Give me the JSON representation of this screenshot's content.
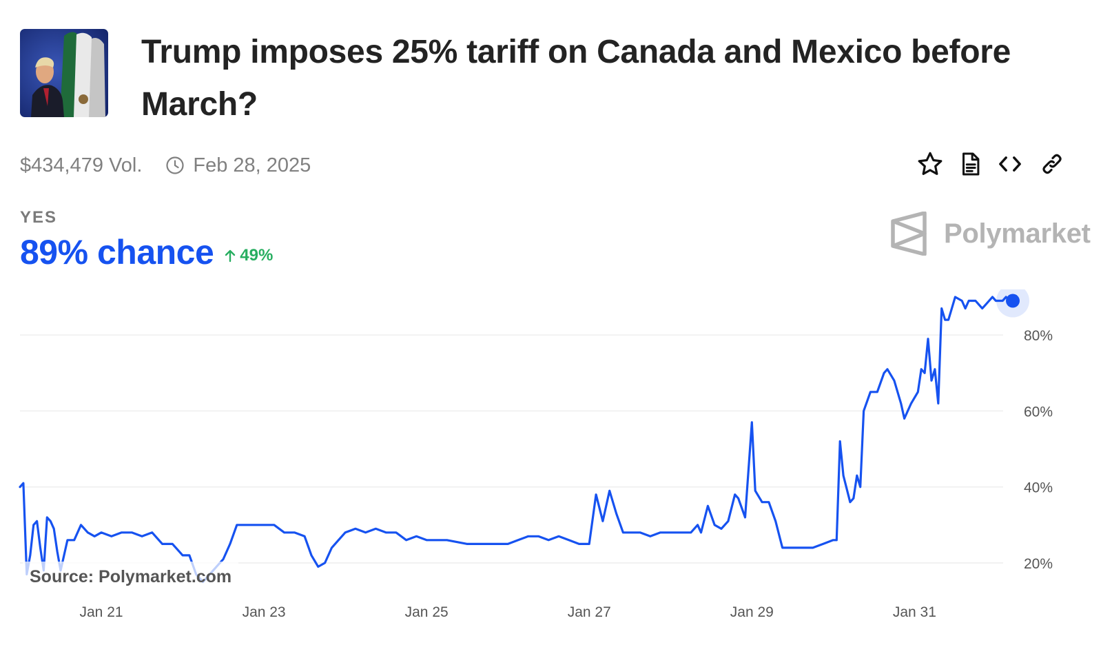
{
  "market": {
    "title": "Trump imposes 25% tariff on Canada and Mexico before March?",
    "volume": "$434,479 Vol.",
    "end_date": "Feb 28, 2025",
    "outcome_label": "YES",
    "chance_text": "89% chance",
    "change_text": "49%",
    "brand": "Polymarket",
    "source": "Source: Polymarket.com"
  },
  "actions": [
    {
      "name": "favorite",
      "icon": "star-icon"
    },
    {
      "name": "rules",
      "icon": "document-icon"
    },
    {
      "name": "embed",
      "icon": "code-icon"
    },
    {
      "name": "copy-link",
      "icon": "link-icon"
    }
  ],
  "colors": {
    "line": "#1652f0",
    "positive": "#27ae60",
    "muted": "#808080",
    "grid": "#ececec"
  },
  "chart_data": {
    "type": "line",
    "title": "",
    "xlabel": "",
    "ylabel": "",
    "x_ticks": [
      "Jan 21",
      "Jan 23",
      "Jan 25",
      "Jan 27",
      "Jan 29",
      "Jan 31"
    ],
    "y_ticks": [
      "20%",
      "40%",
      "60%",
      "80%"
    ],
    "ylim": [
      14,
      92
    ],
    "grid": true,
    "series": [
      {
        "values": [
          [
            "Jan 20 00:00",
            40
          ],
          [
            "Jan 20 01:00",
            41
          ],
          [
            "Jan 20 02:00",
            17
          ],
          [
            "Jan 20 03:00",
            22
          ],
          [
            "Jan 20 04:00",
            30
          ],
          [
            "Jan 20 05:00",
            31
          ],
          [
            "Jan 20 06:00",
            24
          ],
          [
            "Jan 20 07:00",
            18
          ],
          [
            "Jan 20 08:00",
            32
          ],
          [
            "Jan 20 09:00",
            31
          ],
          [
            "Jan 20 10:00",
            29
          ],
          [
            "Jan 20 11:00",
            23
          ],
          [
            "Jan 20 12:00",
            18
          ],
          [
            "Jan 20 14:00",
            26
          ],
          [
            "Jan 20 16:00",
            26
          ],
          [
            "Jan 20 18:00",
            30
          ],
          [
            "Jan 20 20:00",
            28
          ],
          [
            "Jan 20 22:00",
            27
          ],
          [
            "Jan 21 00:00",
            28
          ],
          [
            "Jan 21 03:00",
            27
          ],
          [
            "Jan 21 06:00",
            28
          ],
          [
            "Jan 21 09:00",
            28
          ],
          [
            "Jan 21 12:00",
            27
          ],
          [
            "Jan 21 15:00",
            28
          ],
          [
            "Jan 21 18:00",
            25
          ],
          [
            "Jan 21 21:00",
            25
          ],
          [
            "Jan 22 00:00",
            22
          ],
          [
            "Jan 22 02:00",
            22
          ],
          [
            "Jan 22 04:00",
            17
          ],
          [
            "Jan 22 06:00",
            15
          ],
          [
            "Jan 22 08:00",
            17
          ],
          [
            "Jan 22 10:00",
            19
          ],
          [
            "Jan 22 12:00",
            21
          ],
          [
            "Jan 22 14:00",
            25
          ],
          [
            "Jan 22 16:00",
            30
          ],
          [
            "Jan 22 18:00",
            30
          ],
          [
            "Jan 22 21:00",
            30
          ],
          [
            "Jan 23 00:00",
            30
          ],
          [
            "Jan 23 03:00",
            30
          ],
          [
            "Jan 23 06:00",
            28
          ],
          [
            "Jan 23 09:00",
            28
          ],
          [
            "Jan 23 12:00",
            27
          ],
          [
            "Jan 23 14:00",
            22
          ],
          [
            "Jan 23 16:00",
            19
          ],
          [
            "Jan 23 18:00",
            20
          ],
          [
            "Jan 23 20:00",
            24
          ],
          [
            "Jan 23 22:00",
            26
          ],
          [
            "Jan 24 00:00",
            28
          ],
          [
            "Jan 24 03:00",
            29
          ],
          [
            "Jan 24 06:00",
            28
          ],
          [
            "Jan 24 09:00",
            29
          ],
          [
            "Jan 24 12:00",
            28
          ],
          [
            "Jan 24 15:00",
            28
          ],
          [
            "Jan 24 18:00",
            26
          ],
          [
            "Jan 24 21:00",
            27
          ],
          [
            "Jan 25 00:00",
            26
          ],
          [
            "Jan 25 06:00",
            26
          ],
          [
            "Jan 25 12:00",
            25
          ],
          [
            "Jan 25 18:00",
            25
          ],
          [
            "Jan 26 00:00",
            25
          ],
          [
            "Jan 26 03:00",
            26
          ],
          [
            "Jan 26 06:00",
            27
          ],
          [
            "Jan 26 09:00",
            27
          ],
          [
            "Jan 26 12:00",
            26
          ],
          [
            "Jan 26 15:00",
            27
          ],
          [
            "Jan 26 18:00",
            26
          ],
          [
            "Jan 26 21:00",
            25
          ],
          [
            "Jan 27 00:00",
            25
          ],
          [
            "Jan 27 02:00",
            38
          ],
          [
            "Jan 27 04:00",
            31
          ],
          [
            "Jan 27 06:00",
            39
          ],
          [
            "Jan 27 08:00",
            33
          ],
          [
            "Jan 27 10:00",
            28
          ],
          [
            "Jan 27 12:00",
            28
          ],
          [
            "Jan 27 15:00",
            28
          ],
          [
            "Jan 27 18:00",
            27
          ],
          [
            "Jan 27 21:00",
            28
          ],
          [
            "Jan 28 00:00",
            28
          ],
          [
            "Jan 28 03:00",
            28
          ],
          [
            "Jan 28 06:00",
            28
          ],
          [
            "Jan 28 08:00",
            30
          ],
          [
            "Jan 28 09:00",
            28
          ],
          [
            "Jan 28 11:00",
            35
          ],
          [
            "Jan 28 13:00",
            30
          ],
          [
            "Jan 28 15:00",
            29
          ],
          [
            "Jan 28 17:00",
            31
          ],
          [
            "Jan 28 19:00",
            38
          ],
          [
            "Jan 28 20:00",
            37
          ],
          [
            "Jan 28 22:00",
            32
          ],
          [
            "Jan 29 00:00",
            57
          ],
          [
            "Jan 29 01:00",
            39
          ],
          [
            "Jan 29 03:00",
            36
          ],
          [
            "Jan 29 05:00",
            36
          ],
          [
            "Jan 29 07:00",
            31
          ],
          [
            "Jan 29 09:00",
            24
          ],
          [
            "Jan 29 12:00",
            24
          ],
          [
            "Jan 29 15:00",
            24
          ],
          [
            "Jan 29 18:00",
            24
          ],
          [
            "Jan 29 21:00",
            25
          ],
          [
            "Jan 30 00:00",
            26
          ],
          [
            "Jan 30 01:00",
            26
          ],
          [
            "Jan 30 02:00",
            52
          ],
          [
            "Jan 30 03:00",
            43
          ],
          [
            "Jan 30 05:00",
            36
          ],
          [
            "Jan 30 06:00",
            37
          ],
          [
            "Jan 30 07:00",
            43
          ],
          [
            "Jan 30 08:00",
            40
          ],
          [
            "Jan 30 09:00",
            60
          ],
          [
            "Jan 30 11:00",
            65
          ],
          [
            "Jan 30 13:00",
            65
          ],
          [
            "Jan 30 15:00",
            70
          ],
          [
            "Jan 30 16:00",
            71
          ],
          [
            "Jan 30 18:00",
            68
          ],
          [
            "Jan 30 20:00",
            62
          ],
          [
            "Jan 30 21:00",
            58
          ],
          [
            "Jan 30 23:00",
            62
          ],
          [
            "Jan 31 01:00",
            65
          ],
          [
            "Jan 31 02:00",
            71
          ],
          [
            "Jan 31 03:00",
            70
          ],
          [
            "Jan 31 04:00",
            79
          ],
          [
            "Jan 31 05:00",
            68
          ],
          [
            "Jan 31 06:00",
            71
          ],
          [
            "Jan 31 07:00",
            62
          ],
          [
            "Jan 31 08:00",
            87
          ],
          [
            "Jan 31 09:00",
            84
          ],
          [
            "Jan 31 10:00",
            84
          ],
          [
            "Jan 31 11:00",
            87
          ],
          [
            "Jan 31 12:00",
            90
          ],
          [
            "Jan 31 14:00",
            89
          ],
          [
            "Jan 31 15:00",
            87
          ],
          [
            "Jan 31 16:00",
            89
          ],
          [
            "Jan 31 18:00",
            89
          ],
          [
            "Jan 31 19:00",
            88
          ],
          [
            "Jan 31 20:00",
            87
          ],
          [
            "Jan 31 21:00",
            88
          ],
          [
            "Jan 31 22:00",
            89
          ],
          [
            "Jan 31 23:00",
            90
          ],
          [
            "Feb 1 00:00",
            89
          ],
          [
            "Feb 1 01:00",
            89
          ],
          [
            "Feb 1 02:00",
            89
          ],
          [
            "Feb 1 03:00",
            90
          ],
          [
            "Feb 1 04:00",
            89
          ],
          [
            "Feb 1 05:00",
            89
          ]
        ]
      }
    ]
  }
}
